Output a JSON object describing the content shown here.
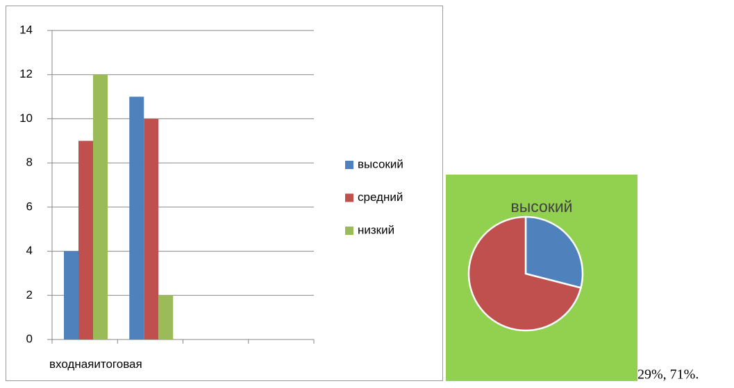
{
  "chart_data": [
    {
      "type": "bar",
      "categories": [
        "входная",
        "итоговая",
        null,
        null
      ],
      "series": [
        {
          "name": "высокий",
          "color": "#4f81bd",
          "values": [
            4,
            11,
            null,
            null
          ]
        },
        {
          "name": "средний",
          "color": "#c0504d",
          "values": [
            9,
            10,
            null,
            null
          ]
        },
        {
          "name": "низкий",
          "color": "#9bbb59",
          "values": [
            12,
            2,
            null,
            null
          ]
        }
      ],
      "ylim": [
        0,
        14
      ],
      "yticks": [
        0,
        2,
        4,
        6,
        8,
        10,
        12,
        14
      ],
      "grid": true,
      "legend": "right"
    },
    {
      "type": "pie",
      "title": "высокий",
      "categories": [
        "высокий",
        "средний"
      ],
      "values": [
        29,
        71
      ],
      "colors": [
        "#4f81bd",
        "#c0504d"
      ],
      "background": "#92d050"
    }
  ],
  "caption": "29%, 71%."
}
